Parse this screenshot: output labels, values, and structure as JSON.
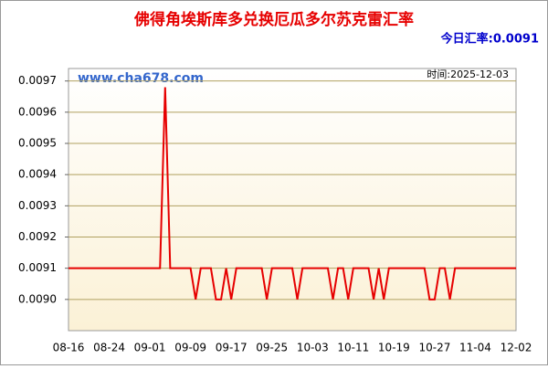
{
  "chart_data": {
    "type": "line",
    "title": "佛得角埃斯库多兑换厄瓜多尔苏克雷汇率",
    "subtitle": "今日汇率:0.0091",
    "annotations": [
      "www.cha678.com",
      "时间:2025-12-03"
    ],
    "color": "#e60000",
    "categories": [
      "08-16",
      null,
      null,
      null,
      null,
      null,
      null,
      null,
      "08-24",
      null,
      null,
      null,
      null,
      null,
      null,
      null,
      "09-01",
      null,
      null,
      null,
      null,
      null,
      null,
      null,
      "09-09",
      null,
      null,
      null,
      null,
      null,
      null,
      null,
      "09-17",
      null,
      null,
      null,
      null,
      null,
      null,
      null,
      "09-25",
      null,
      null,
      null,
      null,
      null,
      null,
      null,
      "10-03",
      null,
      null,
      null,
      null,
      null,
      null,
      null,
      "10-11",
      null,
      null,
      null,
      null,
      null,
      null,
      null,
      "10-19",
      null,
      null,
      null,
      null,
      null,
      null,
      null,
      "10-27",
      null,
      null,
      null,
      null,
      null,
      null,
      null,
      "11-04",
      null,
      null,
      null,
      null,
      null,
      null,
      null,
      "12-02"
    ],
    "values": [
      0.0091,
      0.0091,
      0.0091,
      0.0091,
      0.0091,
      0.0091,
      0.0091,
      0.0091,
      0.0091,
      0.0091,
      0.0091,
      0.0091,
      0.0091,
      0.0091,
      0.0091,
      0.0091,
      0.0091,
      0.0091,
      0.0091,
      0.00968,
      0.0091,
      0.0091,
      0.0091,
      0.0091,
      0.0091,
      0.009,
      0.0091,
      0.0091,
      0.0091,
      0.009,
      0.009,
      0.0091,
      0.009,
      0.0091,
      0.0091,
      0.0091,
      0.0091,
      0.0091,
      0.0091,
      0.009,
      0.0091,
      0.0091,
      0.0091,
      0.0091,
      0.0091,
      0.009,
      0.0091,
      0.0091,
      0.0091,
      0.0091,
      0.0091,
      0.0091,
      0.009,
      0.0091,
      0.0091,
      0.009,
      0.0091,
      0.0091,
      0.0091,
      0.0091,
      0.009,
      0.0091,
      0.009,
      0.0091,
      0.0091,
      0.0091,
      0.0091,
      0.0091,
      0.0091,
      0.0091,
      0.0091,
      0.009,
      0.009,
      0.0091,
      0.0091,
      0.009,
      0.0091,
      0.0091,
      0.0091,
      0.0091,
      0.0091,
      0.0091,
      0.0091,
      0.0091,
      0.0091,
      0.0091,
      0.0091,
      0.0091,
      0.0091
    ],
    "ylim": [
      0.0089,
      0.00974
    ],
    "yticks": [
      {
        "value": 0.009,
        "label": "0.0090"
      },
      0.0091,
      0.0092,
      0.0093,
      0.0094,
      0.0095,
      0.0096,
      0.0097
    ],
    "grid": true
  }
}
